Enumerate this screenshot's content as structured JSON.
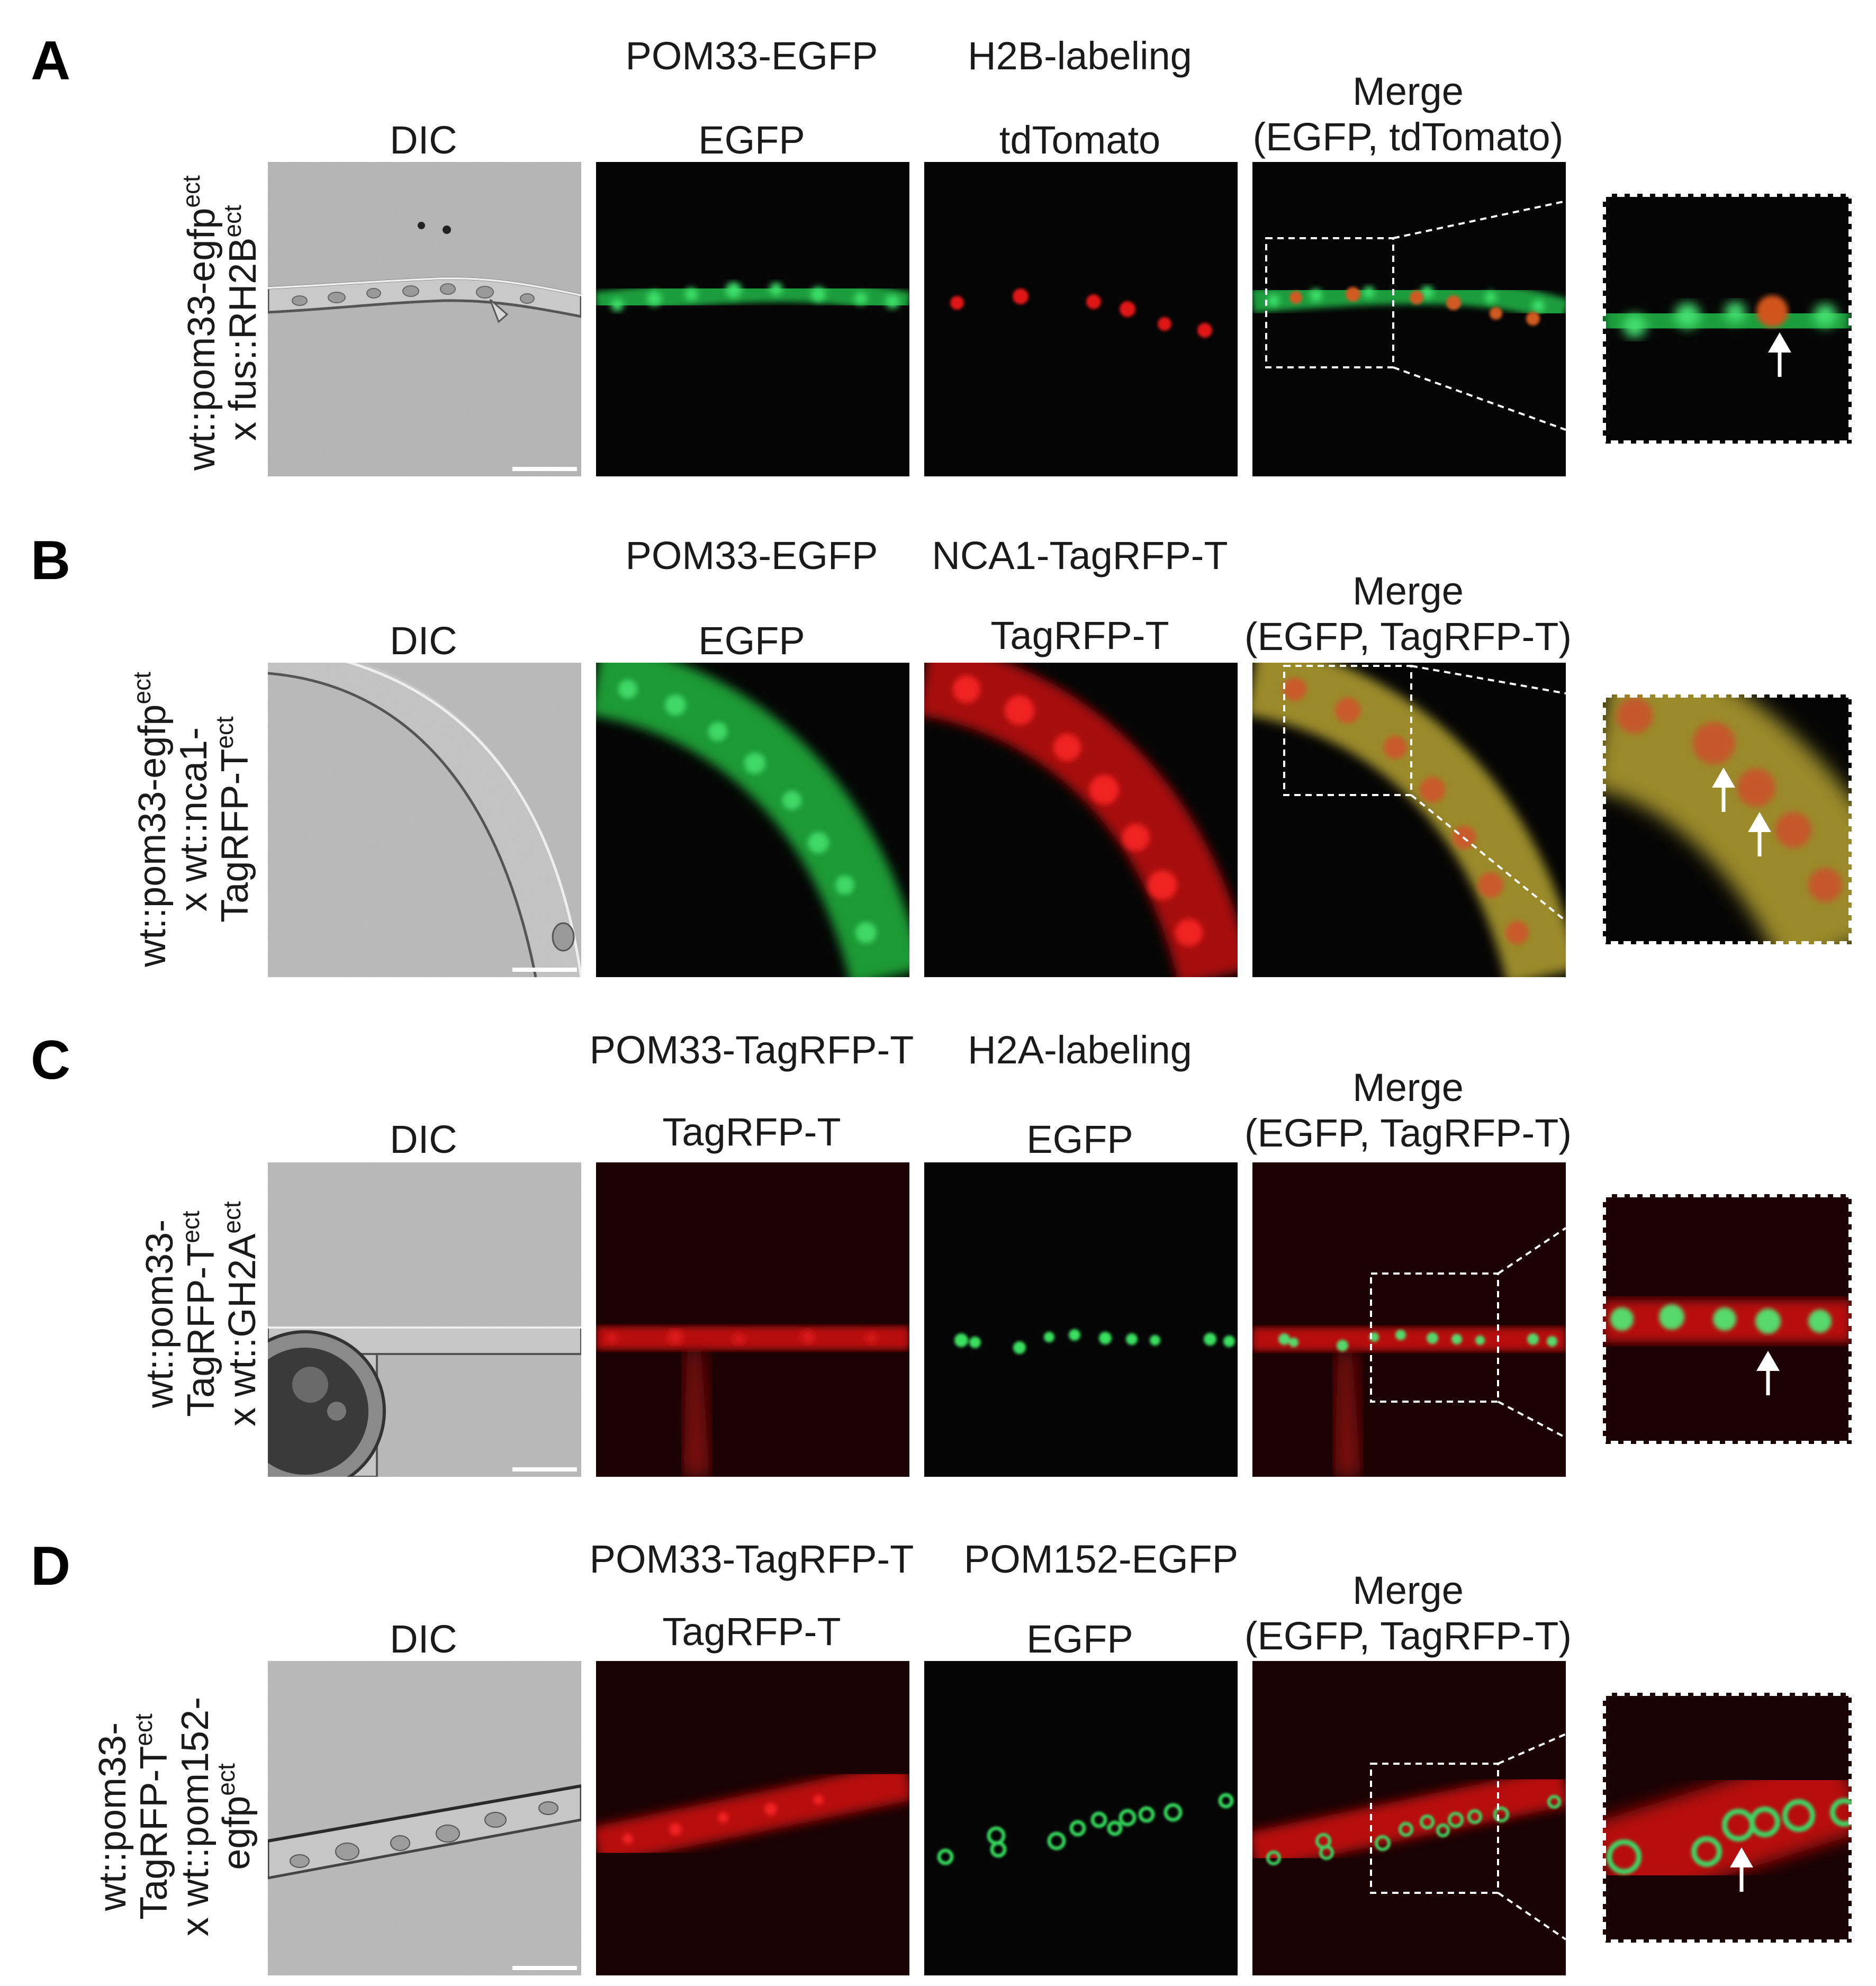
{
  "colors": {
    "dic_background": "#b5b5b5",
    "fluor_background": "#050505",
    "egfp_green": "#22c24a",
    "tagrfp_red": "#d81616",
    "merge_yellow": "#b8a236",
    "annotation_white": "#ffffff"
  },
  "panels": [
    {
      "letter": "A",
      "header_left": "POM33-EGFP",
      "header_right": "H2B-labeling",
      "row_label_lines": [
        {
          "text": "wt::pom33-egfp",
          "sup": "ect"
        },
        {
          "text": "x fus::RH2B",
          "sup": "ect"
        }
      ],
      "columns": [
        {
          "label": "DIC"
        },
        {
          "label": "EGFP"
        },
        {
          "label": "tdTomato"
        },
        {
          "label_line1": "Merge",
          "label_line2": "(EGFP, tdTomato)"
        }
      ],
      "inset_arrow_count": 1
    },
    {
      "letter": "B",
      "header_left": "POM33-EGFP",
      "header_right": "NCA1-TagRFP-T",
      "row_label_lines": [
        {
          "text": "wt::pom33-egfp",
          "sup": "ect"
        },
        {
          "text": "x wt::nca1-",
          "sup": ""
        },
        {
          "text": "TagRFP-T",
          "sup": "ect"
        }
      ],
      "columns": [
        {
          "label": "DIC"
        },
        {
          "label": "EGFP"
        },
        {
          "label": "TagRFP-T"
        },
        {
          "label_line1": "Merge",
          "label_line2": "(EGFP, TagRFP-T)"
        }
      ],
      "inset_arrow_count": 2
    },
    {
      "letter": "C",
      "header_left": "POM33-TagRFP-T",
      "header_right": "H2A-labeling",
      "row_label_lines": [
        {
          "text": "wt::pom33-",
          "sup": ""
        },
        {
          "text": "TagRFP-T",
          "sup": "ect"
        },
        {
          "text": "x wt::GH2A",
          "sup": "ect"
        }
      ],
      "columns": [
        {
          "label": "DIC"
        },
        {
          "label": "TagRFP-T"
        },
        {
          "label": "EGFP"
        },
        {
          "label_line1": "Merge",
          "label_line2": "(EGFP, TagRFP-T)"
        }
      ],
      "inset_arrow_count": 1
    },
    {
      "letter": "D",
      "header_left": "POM33-TagRFP-T",
      "header_right": "POM152-EGFP",
      "row_label_lines": [
        {
          "text": "wt::pom33-",
          "sup": ""
        },
        {
          "text": "TagRFP-T",
          "sup": "ect"
        },
        {
          "text": "x wt::pom152-",
          "sup": ""
        },
        {
          "text": "egfp",
          "sup": "ect"
        }
      ],
      "columns": [
        {
          "label": "DIC"
        },
        {
          "label": "TagRFP-T"
        },
        {
          "label": "EGFP"
        },
        {
          "label_line1": "Merge",
          "label_line2": "(EGFP, TagRFP-T)"
        }
      ],
      "inset_arrow_count": 1
    }
  ]
}
